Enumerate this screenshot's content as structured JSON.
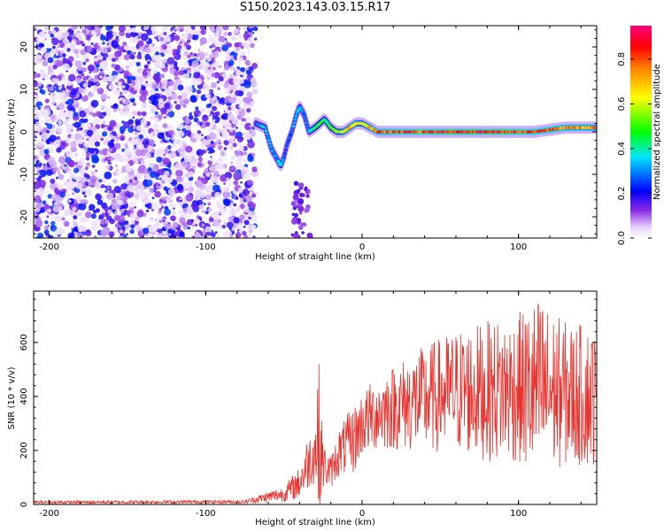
{
  "title": "S150.2023.143.03.15.R17",
  "chart_data": [
    {
      "type": "heatmap",
      "xlabel": "Height of straight line (km)",
      "ylabel": "Frequency (Hz)",
      "xlim": [
        -210,
        150
      ],
      "ylim": [
        -25,
        25
      ],
      "x_ticks": [
        "-200",
        "-100",
        "0",
        "100"
      ],
      "y_ticks": [
        "-20",
        "-10",
        "0",
        "10",
        "20"
      ],
      "colorbar": {
        "label": "Normalized spectral amplitude",
        "range": [
          0,
          0.95
        ],
        "ticks": [
          "0.0",
          "0.2",
          "0.4",
          "0.6",
          "0.8"
        ],
        "colormap": "rainbow (white-violet-blue-cyan-green-yellow-red-magenta)"
      },
      "noise_region_x": [
        -210,
        -68
      ],
      "ridge": {
        "x": [
          -68,
          -62,
          -58,
          -55,
          -52,
          -50,
          -48,
          -45,
          -42,
          -40,
          -37,
          -34,
          -30,
          -27,
          -24,
          -20,
          -16,
          -12,
          -8,
          -4,
          0,
          10,
          30,
          60,
          90,
          110,
          130,
          150
        ],
        "y": [
          2,
          1,
          -4,
          -6,
          -8,
          -6,
          -3,
          0,
          4,
          6,
          4,
          0,
          1,
          2,
          3,
          1,
          0,
          0,
          1,
          2,
          2,
          0,
          0,
          0,
          0,
          0,
          1,
          1
        ],
        "amplitude": [
          0.3,
          0.4,
          0.35,
          0.3,
          0.4,
          0.3,
          0.25,
          0.3,
          0.4,
          0.35,
          0.3,
          0.35,
          0.45,
          0.5,
          0.4,
          0.5,
          0.6,
          0.65,
          0.7,
          0.7,
          0.65,
          0.8,
          0.85,
          0.9,
          0.9,
          0.85,
          0.8,
          0.75
        ]
      }
    },
    {
      "type": "line",
      "xlabel": "Height of straight line (km)",
      "ylabel": "SNR (10 * v/v)",
      "xlim": [
        -210,
        150
      ],
      "ylim": [
        0,
        790
      ],
      "x_ticks": [
        "-200",
        "-100",
        "0",
        "100"
      ],
      "y_ticks": [
        "0",
        "200",
        "400",
        "600"
      ],
      "color": "#e8332e",
      "envelope": {
        "x": [
          -210,
          -75,
          -50,
          -40,
          -35,
          -30,
          -28,
          -26,
          -24,
          -20,
          -15,
          -10,
          -5,
          0,
          10,
          20,
          40,
          60,
          80,
          100,
          110,
          115,
          120,
          130,
          150
        ],
        "mean": [
          8,
          10,
          40,
          80,
          150,
          200,
          250,
          180,
          140,
          120,
          190,
          220,
          240,
          300,
          340,
          360,
          390,
          420,
          420,
          430,
          420,
          420,
          420,
          410,
          400
        ],
        "amp": [
          6,
          7,
          30,
          60,
          100,
          120,
          330,
          150,
          80,
          60,
          90,
          110,
          130,
          120,
          140,
          160,
          200,
          230,
          260,
          280,
          340,
          360,
          300,
          270,
          260
        ]
      }
    }
  ]
}
